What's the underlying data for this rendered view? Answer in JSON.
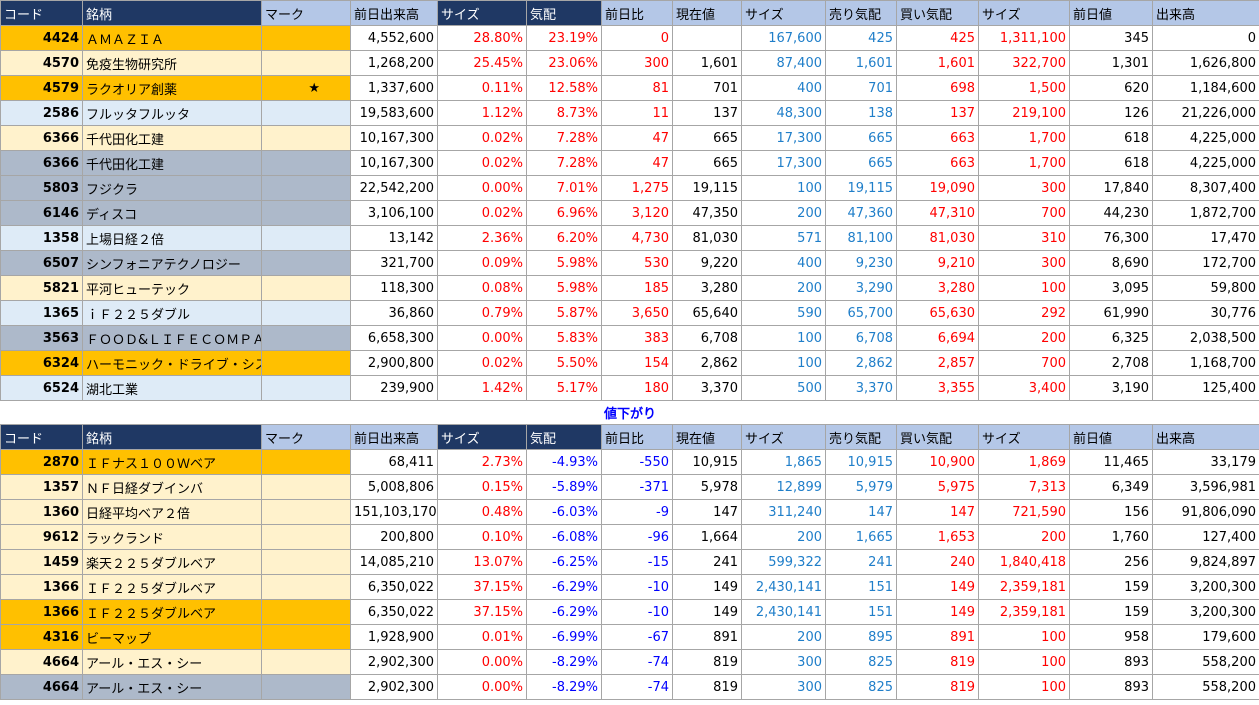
{
  "headers": [
    "コード",
    "銘柄",
    "マーク",
    "前日出来高",
    "サイズ",
    "気配",
    "前日比",
    "現在値",
    "サイズ",
    "売り気配",
    "買い気配",
    "サイズ",
    "前日値",
    "出来高"
  ],
  "section_label": "値下がり",
  "colors": {
    "orange": "#ffc000",
    "cream": "#fff2cc",
    "sky": "#deebf7",
    "slate": "#adb9ca"
  },
  "gainers": [
    {
      "code": "4424",
      "name": "ＡＭＡＺＩＡ",
      "mark": "",
      "color": "orange",
      "prev_vol": "4,552,600",
      "size1": "28.80%",
      "quote": "23.19%",
      "chg": "0",
      "price": "",
      "size2": "167,600",
      "ask": "425",
      "bid": "425",
      "size3": "1,311,100",
      "prev": "345",
      "vol": "0"
    },
    {
      "code": "4570",
      "name": "免疫生物研究所",
      "mark": "",
      "color": "cream",
      "prev_vol": "1,268,200",
      "size1": "25.45%",
      "quote": "23.06%",
      "chg": "300",
      "price": "1,601",
      "size2": "87,400",
      "ask": "1,601",
      "bid": "1,601",
      "size3": "322,700",
      "prev": "1,301",
      "vol": "1,626,800"
    },
    {
      "code": "4579",
      "name": "ラクオリア創薬",
      "mark": "★",
      "color": "orange",
      "prev_vol": "1,337,600",
      "size1": "0.11%",
      "quote": "12.58%",
      "chg": "81",
      "price": "701",
      "size2": "400",
      "ask": "701",
      "bid": "698",
      "size3": "1,500",
      "prev": "620",
      "vol": "1,184,600"
    },
    {
      "code": "2586",
      "name": "フルッタフルッタ",
      "mark": "",
      "color": "sky",
      "prev_vol": "19,583,600",
      "size1": "1.12%",
      "quote": "8.73%",
      "chg": "11",
      "price": "137",
      "size2": "48,300",
      "ask": "138",
      "bid": "137",
      "size3": "219,100",
      "prev": "126",
      "vol": "21,226,000"
    },
    {
      "code": "6366",
      "name": "千代田化工建",
      "mark": "",
      "color": "cream",
      "prev_vol": "10,167,300",
      "size1": "0.02%",
      "quote": "7.28%",
      "chg": "47",
      "price": "665",
      "size2": "17,300",
      "ask": "665",
      "bid": "663",
      "size3": "1,700",
      "prev": "618",
      "vol": "4,225,000"
    },
    {
      "code": "6366",
      "name": "千代田化工建",
      "mark": "",
      "color": "slate",
      "prev_vol": "10,167,300",
      "size1": "0.02%",
      "quote": "7.28%",
      "chg": "47",
      "price": "665",
      "size2": "17,300",
      "ask": "665",
      "bid": "663",
      "size3": "1,700",
      "prev": "618",
      "vol": "4,225,000"
    },
    {
      "code": "5803",
      "name": "フジクラ",
      "mark": "",
      "color": "slate",
      "prev_vol": "22,542,200",
      "size1": "0.00%",
      "quote": "7.01%",
      "chg": "1,275",
      "price": "19,115",
      "size2": "100",
      "ask": "19,115",
      "bid": "19,090",
      "size3": "300",
      "prev": "17,840",
      "vol": "8,307,400"
    },
    {
      "code": "6146",
      "name": "ディスコ",
      "mark": "",
      "color": "slate",
      "prev_vol": "3,106,100",
      "size1": "0.02%",
      "quote": "6.96%",
      "chg": "3,120",
      "price": "47,350",
      "size2": "200",
      "ask": "47,360",
      "bid": "47,310",
      "size3": "700",
      "prev": "44,230",
      "vol": "1,872,700"
    },
    {
      "code": "1358",
      "name": "上場日経２倍",
      "mark": "",
      "color": "sky",
      "prev_vol": "13,142",
      "size1": "2.36%",
      "quote": "6.20%",
      "chg": "4,730",
      "price": "81,030",
      "size2": "571",
      "ask": "81,100",
      "bid": "81,030",
      "size3": "310",
      "prev": "76,300",
      "vol": "17,470"
    },
    {
      "code": "6507",
      "name": "シンフォニアテクノロジー",
      "mark": "",
      "color": "slate",
      "prev_vol": "321,700",
      "size1": "0.09%",
      "quote": "5.98%",
      "chg": "530",
      "price": "9,220",
      "size2": "400",
      "ask": "9,230",
      "bid": "9,210",
      "size3": "300",
      "prev": "8,690",
      "vol": "172,700"
    },
    {
      "code": "5821",
      "name": "平河ヒューテック",
      "mark": "",
      "color": "cream",
      "prev_vol": "118,300",
      "size1": "0.08%",
      "quote": "5.98%",
      "chg": "185",
      "price": "3,280",
      "size2": "200",
      "ask": "3,290",
      "bid": "3,280",
      "size3": "100",
      "prev": "3,095",
      "vol": "59,800"
    },
    {
      "code": "1365",
      "name": "ｉＦ２２５ダブル",
      "mark": "",
      "color": "sky",
      "prev_vol": "36,860",
      "size1": "0.79%",
      "quote": "5.87%",
      "chg": "3,650",
      "price": "65,640",
      "size2": "590",
      "ask": "65,700",
      "bid": "65,630",
      "size3": "292",
      "prev": "61,990",
      "vol": "30,776"
    },
    {
      "code": "3563",
      "name": "ＦＯＯＤ&ＬＩＦＥＣＯＭＰＡＮ",
      "mark": "",
      "color": "slate",
      "prev_vol": "6,658,300",
      "size1": "0.00%",
      "quote": "5.83%",
      "chg": "383",
      "price": "6,708",
      "size2": "100",
      "ask": "6,708",
      "bid": "6,694",
      "size3": "200",
      "prev": "6,325",
      "vol": "2,038,500"
    },
    {
      "code": "6324",
      "name": "ハーモニック・ドライブ・シス",
      "mark": "",
      "color": "orange",
      "prev_vol": "2,900,800",
      "size1": "0.02%",
      "quote": "5.50%",
      "chg": "154",
      "price": "2,862",
      "size2": "100",
      "ask": "2,862",
      "bid": "2,857",
      "size3": "700",
      "prev": "2,708",
      "vol": "1,168,700"
    },
    {
      "code": "6524",
      "name": "湖北工業",
      "mark": "",
      "color": "sky",
      "prev_vol": "239,900",
      "size1": "1.42%",
      "quote": "5.17%",
      "chg": "180",
      "price": "3,370",
      "size2": "500",
      "ask": "3,370",
      "bid": "3,355",
      "size3": "3,400",
      "prev": "3,190",
      "vol": "125,400"
    }
  ],
  "losers": [
    {
      "code": "2870",
      "name": "ＩＦナス１００Ｗベア",
      "mark": "",
      "color": "orange",
      "prev_vol": "68,411",
      "size1": "2.73%",
      "quote": "-4.93%",
      "chg": "-550",
      "price": "10,915",
      "size2": "1,865",
      "ask": "10,915",
      "bid": "10,900",
      "size3": "1,869",
      "prev": "11,465",
      "vol": "33,179"
    },
    {
      "code": "1357",
      "name": "ＮＦ日経ダブインバ",
      "mark": "",
      "color": "cream",
      "prev_vol": "5,008,806",
      "size1": "0.15%",
      "quote": "-5.89%",
      "chg": "-371",
      "price": "5,978",
      "size2": "12,899",
      "ask": "5,979",
      "bid": "5,975",
      "size3": "7,313",
      "prev": "6,349",
      "vol": "3,596,981"
    },
    {
      "code": "1360",
      "name": "日経平均ベア２倍",
      "mark": "",
      "color": "cream",
      "prev_vol": "151,103,170",
      "size1": "0.48%",
      "quote": "-6.03%",
      "chg": "-9",
      "price": "147",
      "size2": "311,240",
      "ask": "147",
      "bid": "147",
      "size3": "721,590",
      "prev": "156",
      "vol": "91,806,090"
    },
    {
      "code": "9612",
      "name": "ラックランド",
      "mark": "",
      "color": "cream",
      "prev_vol": "200,800",
      "size1": "0.10%",
      "quote": "-6.08%",
      "chg": "-96",
      "price": "1,664",
      "size2": "200",
      "ask": "1,665",
      "bid": "1,653",
      "size3": "200",
      "prev": "1,760",
      "vol": "127,400"
    },
    {
      "code": "1459",
      "name": "楽天２２５ダブルベア",
      "mark": "",
      "color": "cream",
      "prev_vol": "14,085,210",
      "size1": "13.07%",
      "quote": "-6.25%",
      "chg": "-15",
      "price": "241",
      "size2": "599,322",
      "ask": "241",
      "bid": "240",
      "size3": "1,840,418",
      "prev": "256",
      "vol": "9,824,897"
    },
    {
      "code": "1366",
      "name": "ＩＦ２２５ダブルベア",
      "mark": "",
      "color": "cream",
      "prev_vol": "6,350,022",
      "size1": "37.15%",
      "quote": "-6.29%",
      "chg": "-10",
      "price": "149",
      "size2": "2,430,141",
      "ask": "151",
      "bid": "149",
      "size3": "2,359,181",
      "prev": "159",
      "vol": "3,200,300"
    },
    {
      "code": "1366",
      "name": "ＩＦ２２５ダブルベア",
      "mark": "",
      "color": "orange",
      "prev_vol": "6,350,022",
      "size1": "37.15%",
      "quote": "-6.29%",
      "chg": "-10",
      "price": "149",
      "size2": "2,430,141",
      "ask": "151",
      "bid": "149",
      "size3": "2,359,181",
      "prev": "159",
      "vol": "3,200,300"
    },
    {
      "code": "4316",
      "name": "ビーマップ",
      "mark": "",
      "color": "orange",
      "prev_vol": "1,928,900",
      "size1": "0.01%",
      "quote": "-6.99%",
      "chg": "-67",
      "price": "891",
      "size2": "200",
      "ask": "895",
      "bid": "891",
      "size3": "100",
      "prev": "958",
      "vol": "179,600"
    },
    {
      "code": "4664",
      "name": "アール・エス・シー",
      "mark": "",
      "color": "cream",
      "prev_vol": "2,902,300",
      "size1": "0.00%",
      "quote": "-8.29%",
      "chg": "-74",
      "price": "819",
      "size2": "300",
      "ask": "825",
      "bid": "819",
      "size3": "100",
      "prev": "893",
      "vol": "558,200"
    },
    {
      "code": "4664",
      "name": "アール・エス・シー",
      "mark": "",
      "color": "slate",
      "prev_vol": "2,902,300",
      "size1": "0.00%",
      "quote": "-8.29%",
      "chg": "-74",
      "price": "819",
      "size2": "300",
      "ask": "825",
      "bid": "819",
      "size3": "100",
      "prev": "893",
      "vol": "558,200"
    }
  ]
}
